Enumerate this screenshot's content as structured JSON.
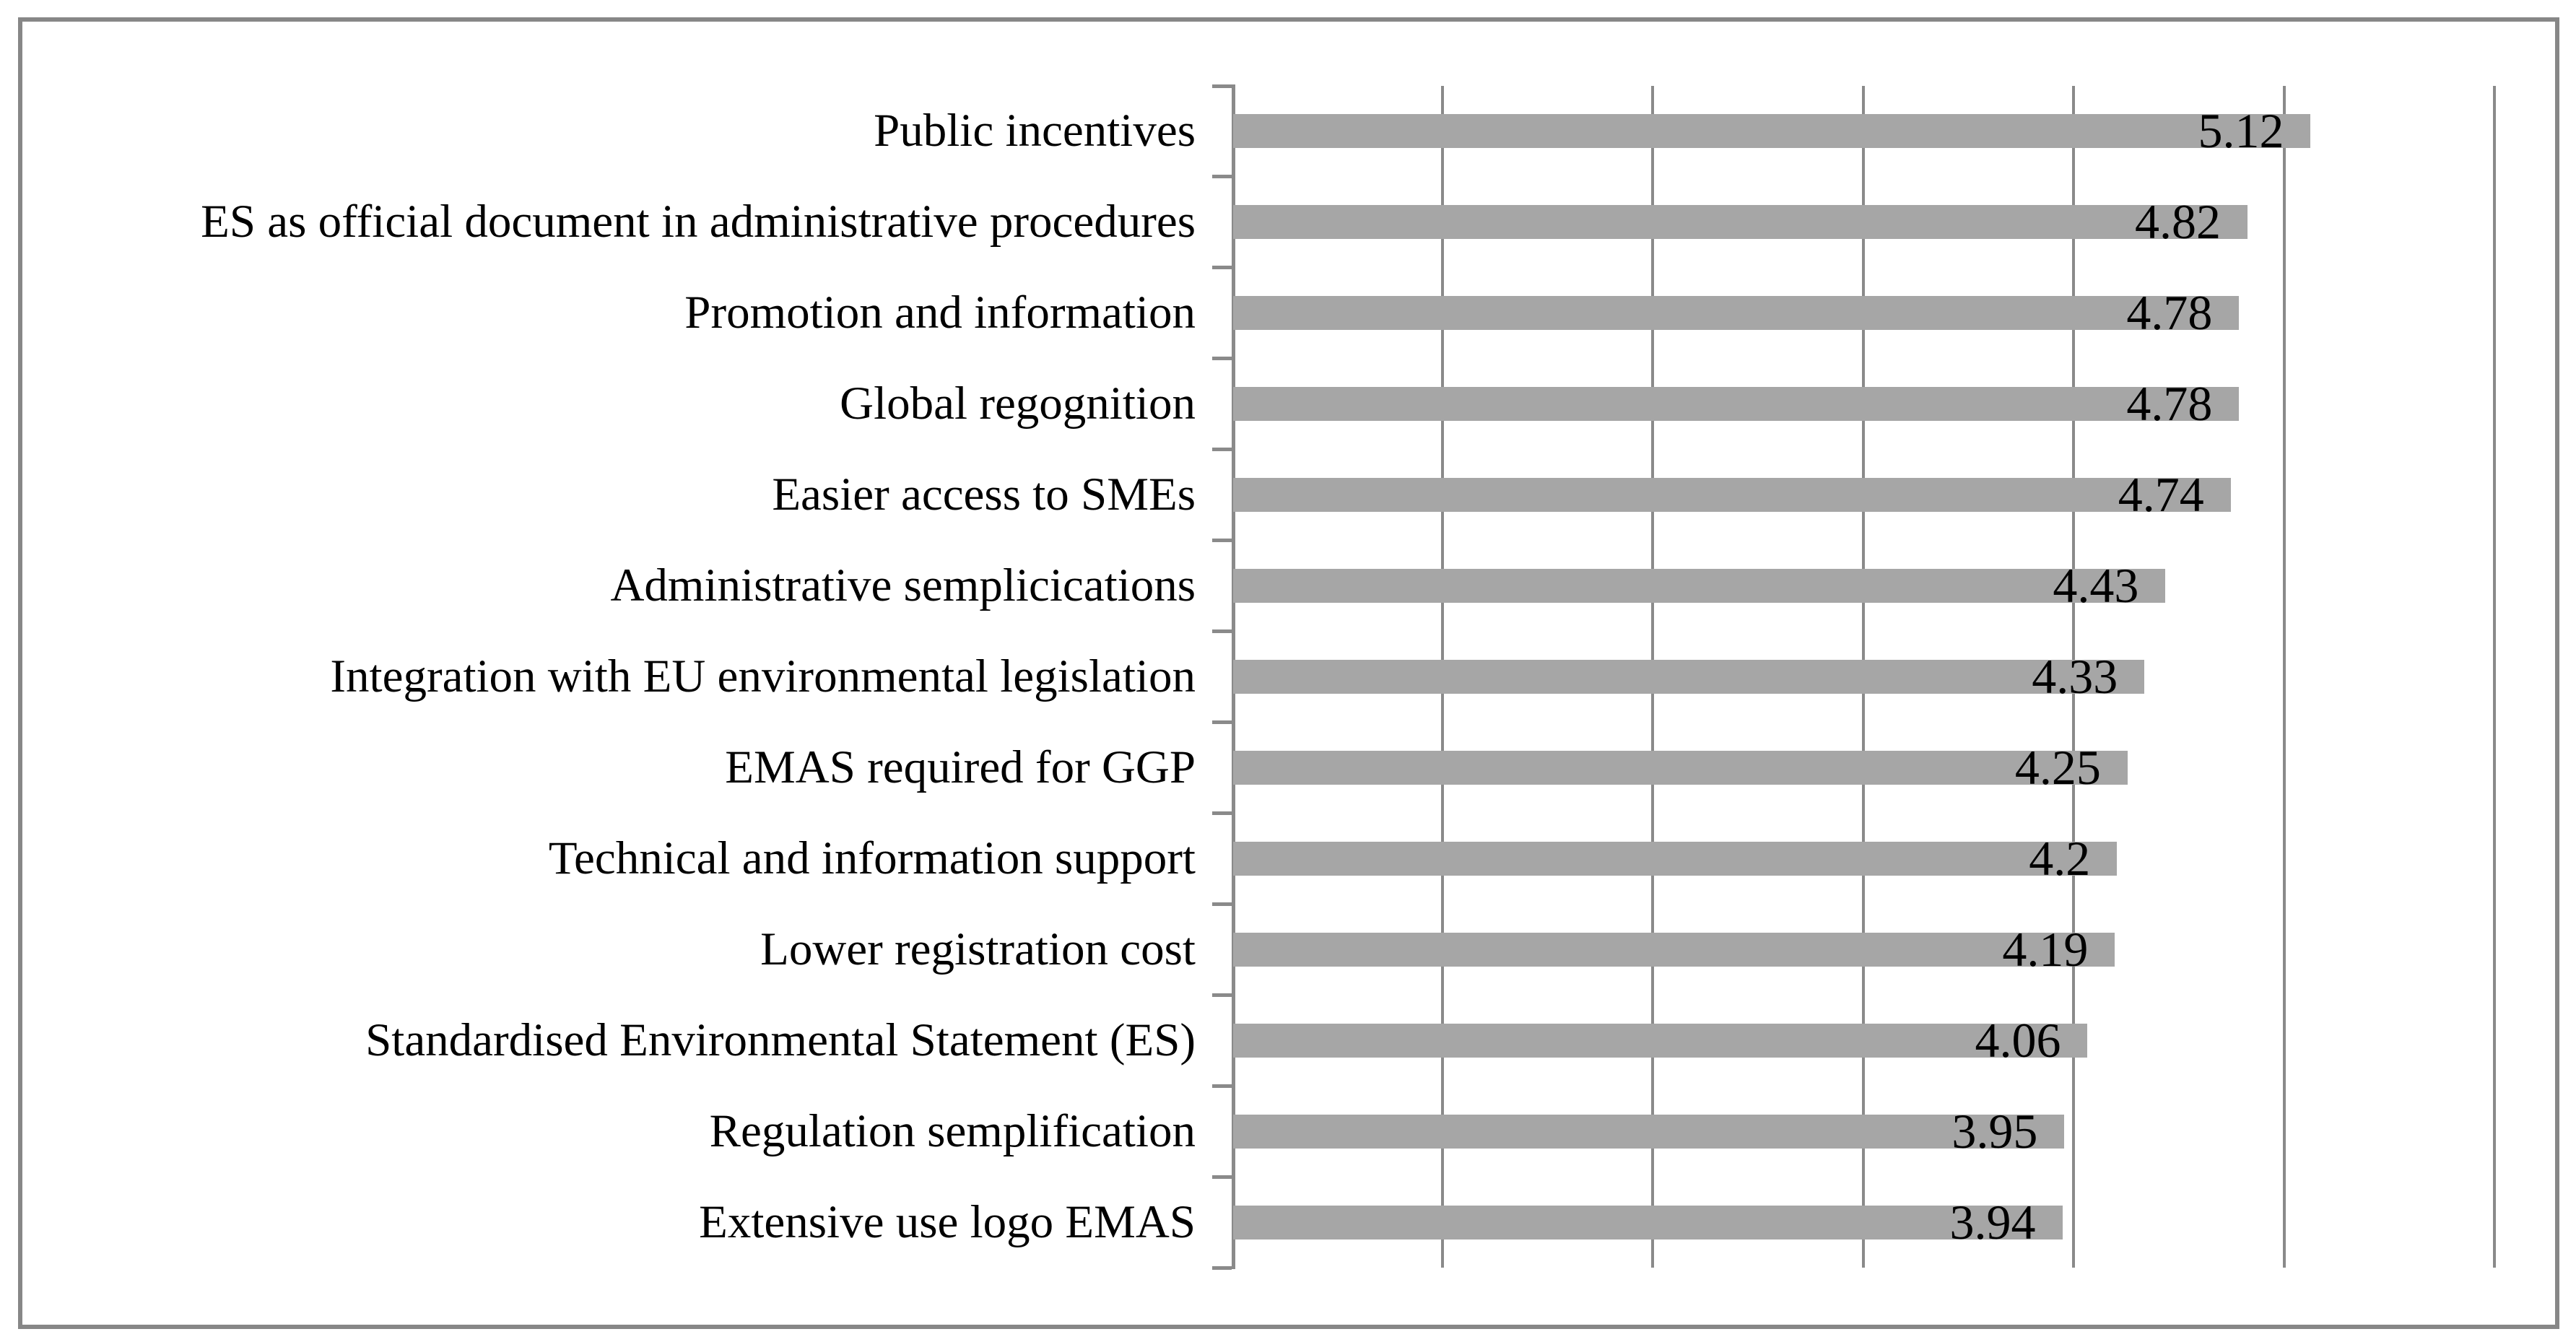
{
  "figure": {
    "background_color": "#ffffff",
    "border_color": "#878787",
    "bar_color": "#a6a6a6",
    "gridline_color": "#8a8a8a",
    "axis_color": "#8a8a8a",
    "text_color": "#000000"
  },
  "chart_data": {
    "type": "bar",
    "orientation": "horizontal",
    "title": "",
    "xlabel": "",
    "ylabel": "",
    "legend": "none",
    "grid": "vertical",
    "xlim": [
      0,
      6
    ],
    "gridline_step": 1,
    "x_tick_labels_visible": false,
    "categories": [
      "Public incentives",
      "ES as official document in administrative procedures",
      "Promotion and information",
      "Global regognition",
      "Easier access to SMEs",
      "Administrative semplicications",
      "Integration with EU environmental legislation",
      "EMAS required for GGP",
      "Technical and information support",
      "Lower registration cost",
      "Standardised Environmental Statement (ES)",
      "Regulation semplification",
      "Extensive use logo EMAS"
    ],
    "values": [
      5.12,
      4.82,
      4.78,
      4.78,
      4.74,
      4.43,
      4.33,
      4.25,
      4.2,
      4.19,
      4.06,
      3.95,
      3.94
    ],
    "value_labels": [
      "5.12",
      "4.82",
      "4.78",
      "4.78",
      "4.74",
      "4.43",
      "4.33",
      "4.25",
      "4.2",
      "4.19",
      "4.06",
      "3.95",
      "3.94"
    ]
  }
}
